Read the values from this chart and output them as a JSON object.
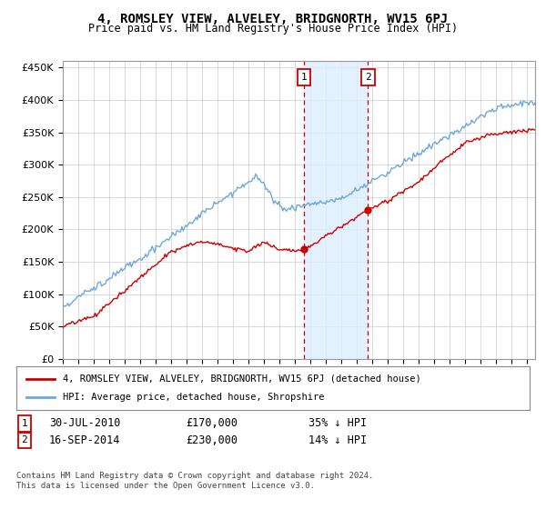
{
  "title": "4, ROMSLEY VIEW, ALVELEY, BRIDGNORTH, WV15 6PJ",
  "subtitle": "Price paid vs. HM Land Registry's House Price Index (HPI)",
  "legend_label_red": "4, ROMSLEY VIEW, ALVELEY, BRIDGNORTH, WV15 6PJ (detached house)",
  "legend_label_blue": "HPI: Average price, detached house, Shropshire",
  "transaction1_date": "30-JUL-2010",
  "transaction1_price": 170000,
  "transaction1_hpi": "35% ↓ HPI",
  "transaction2_date": "16-SEP-2014",
  "transaction2_price": 230000,
  "transaction2_hpi": "14% ↓ HPI",
  "footer": "Contains HM Land Registry data © Crown copyright and database right 2024.\nThis data is licensed under the Open Government Licence v3.0.",
  "ylim": [
    0,
    460000
  ],
  "yticks": [
    0,
    50000,
    100000,
    150000,
    200000,
    250000,
    300000,
    350000,
    400000,
    450000
  ],
  "red_color": "#cc0000",
  "blue_color": "#6fa8d6",
  "shaded_region_color": "#ddeeff",
  "vline_color": "#cc0000",
  "background_color": "#ffffff",
  "grid_color": "#cccccc",
  "t1_year": 2010.583,
  "t2_year": 2014.708,
  "t1_price": 170000,
  "t2_price": 230000
}
